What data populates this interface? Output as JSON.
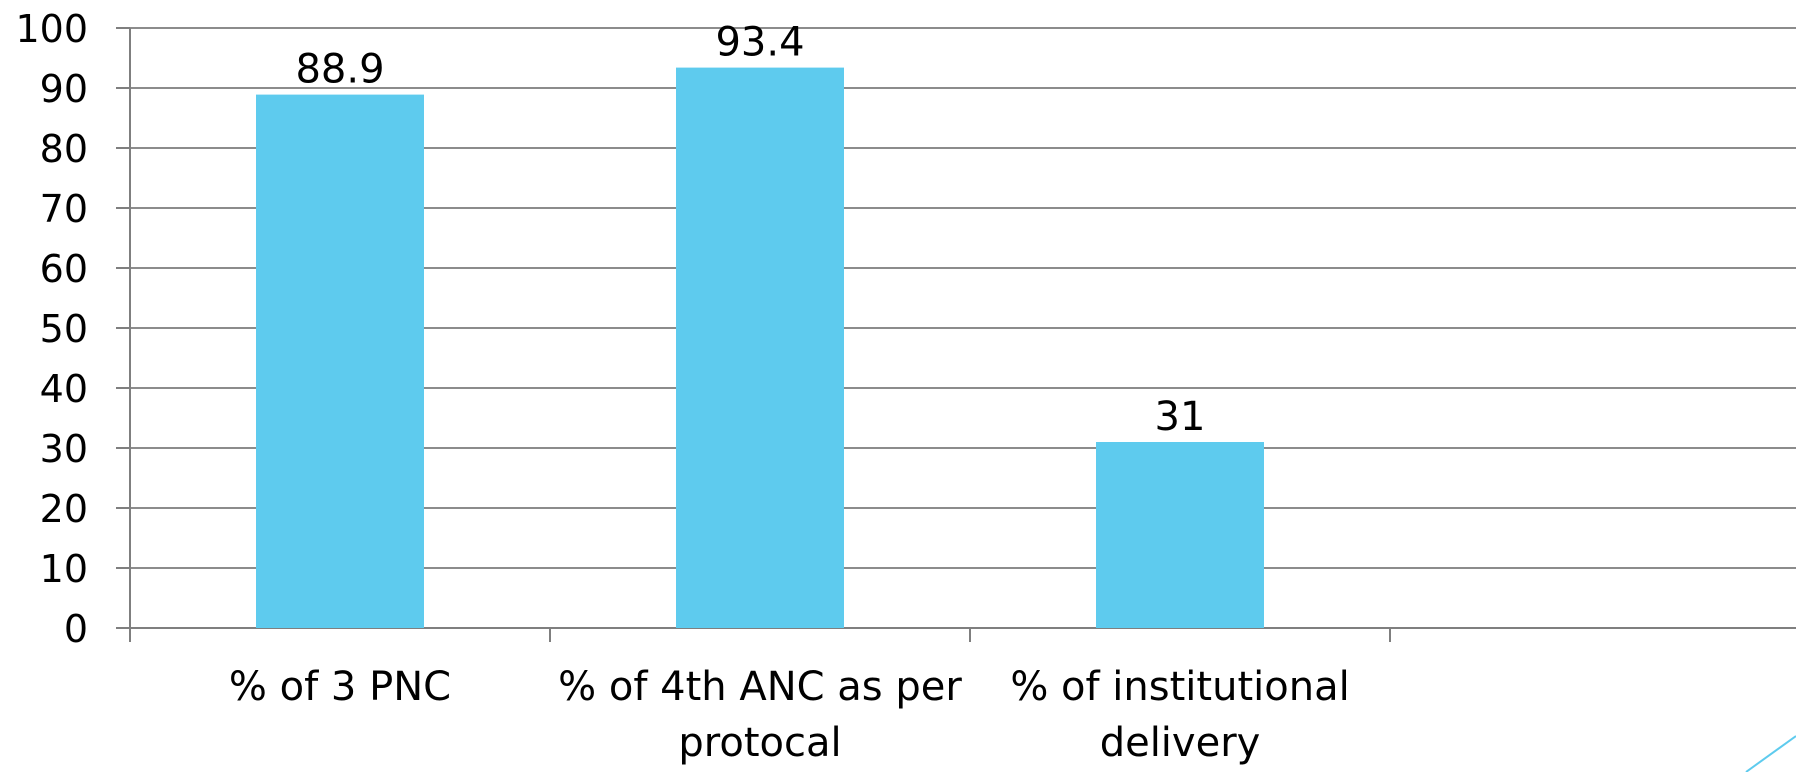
{
  "chart_data": {
    "type": "bar",
    "categories": [
      [
        "% of 3 PNC"
      ],
      [
        "% of 4th ANC as per",
        "protocal"
      ],
      [
        "% of institutional",
        "delivery"
      ],
      [
        ""
      ]
    ],
    "values": [
      88.9,
      93.4,
      31,
      null
    ],
    "data_labels": [
      "88.9",
      "93.4",
      "31",
      ""
    ],
    "title": "",
    "xlabel": "",
    "ylabel": "",
    "ylim": [
      0,
      100
    ],
    "yticks": [
      "0",
      "10",
      "20",
      "30",
      "40",
      "50",
      "60",
      "70",
      "80",
      "90",
      "100"
    ],
    "grid": true,
    "legend": "none",
    "colors": {
      "bar": "#5ECBEE",
      "grid": "#8c8c8c",
      "axis": "#7f7f7f",
      "decoration": "#5ECBEE"
    }
  }
}
